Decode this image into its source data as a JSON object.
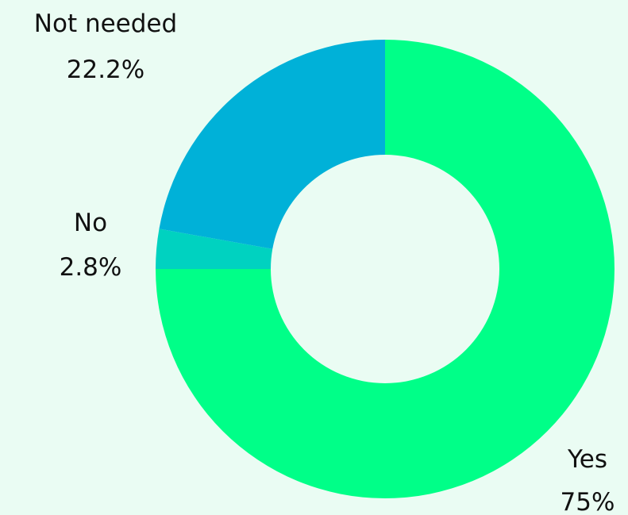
{
  "chart_data": {
    "type": "pie",
    "donut": true,
    "start_angle_deg": 0,
    "direction": "clockwise",
    "categories": [
      "Yes",
      "No",
      "Not needed"
    ],
    "values": [
      75,
      2.8,
      22.2
    ],
    "value_labels": [
      "75%",
      "2.8%",
      "22.2%"
    ],
    "colors": [
      "#00ff88",
      "#00d2c0",
      "#00b1d8"
    ]
  },
  "colors": {
    "background": "#eafcf3"
  }
}
